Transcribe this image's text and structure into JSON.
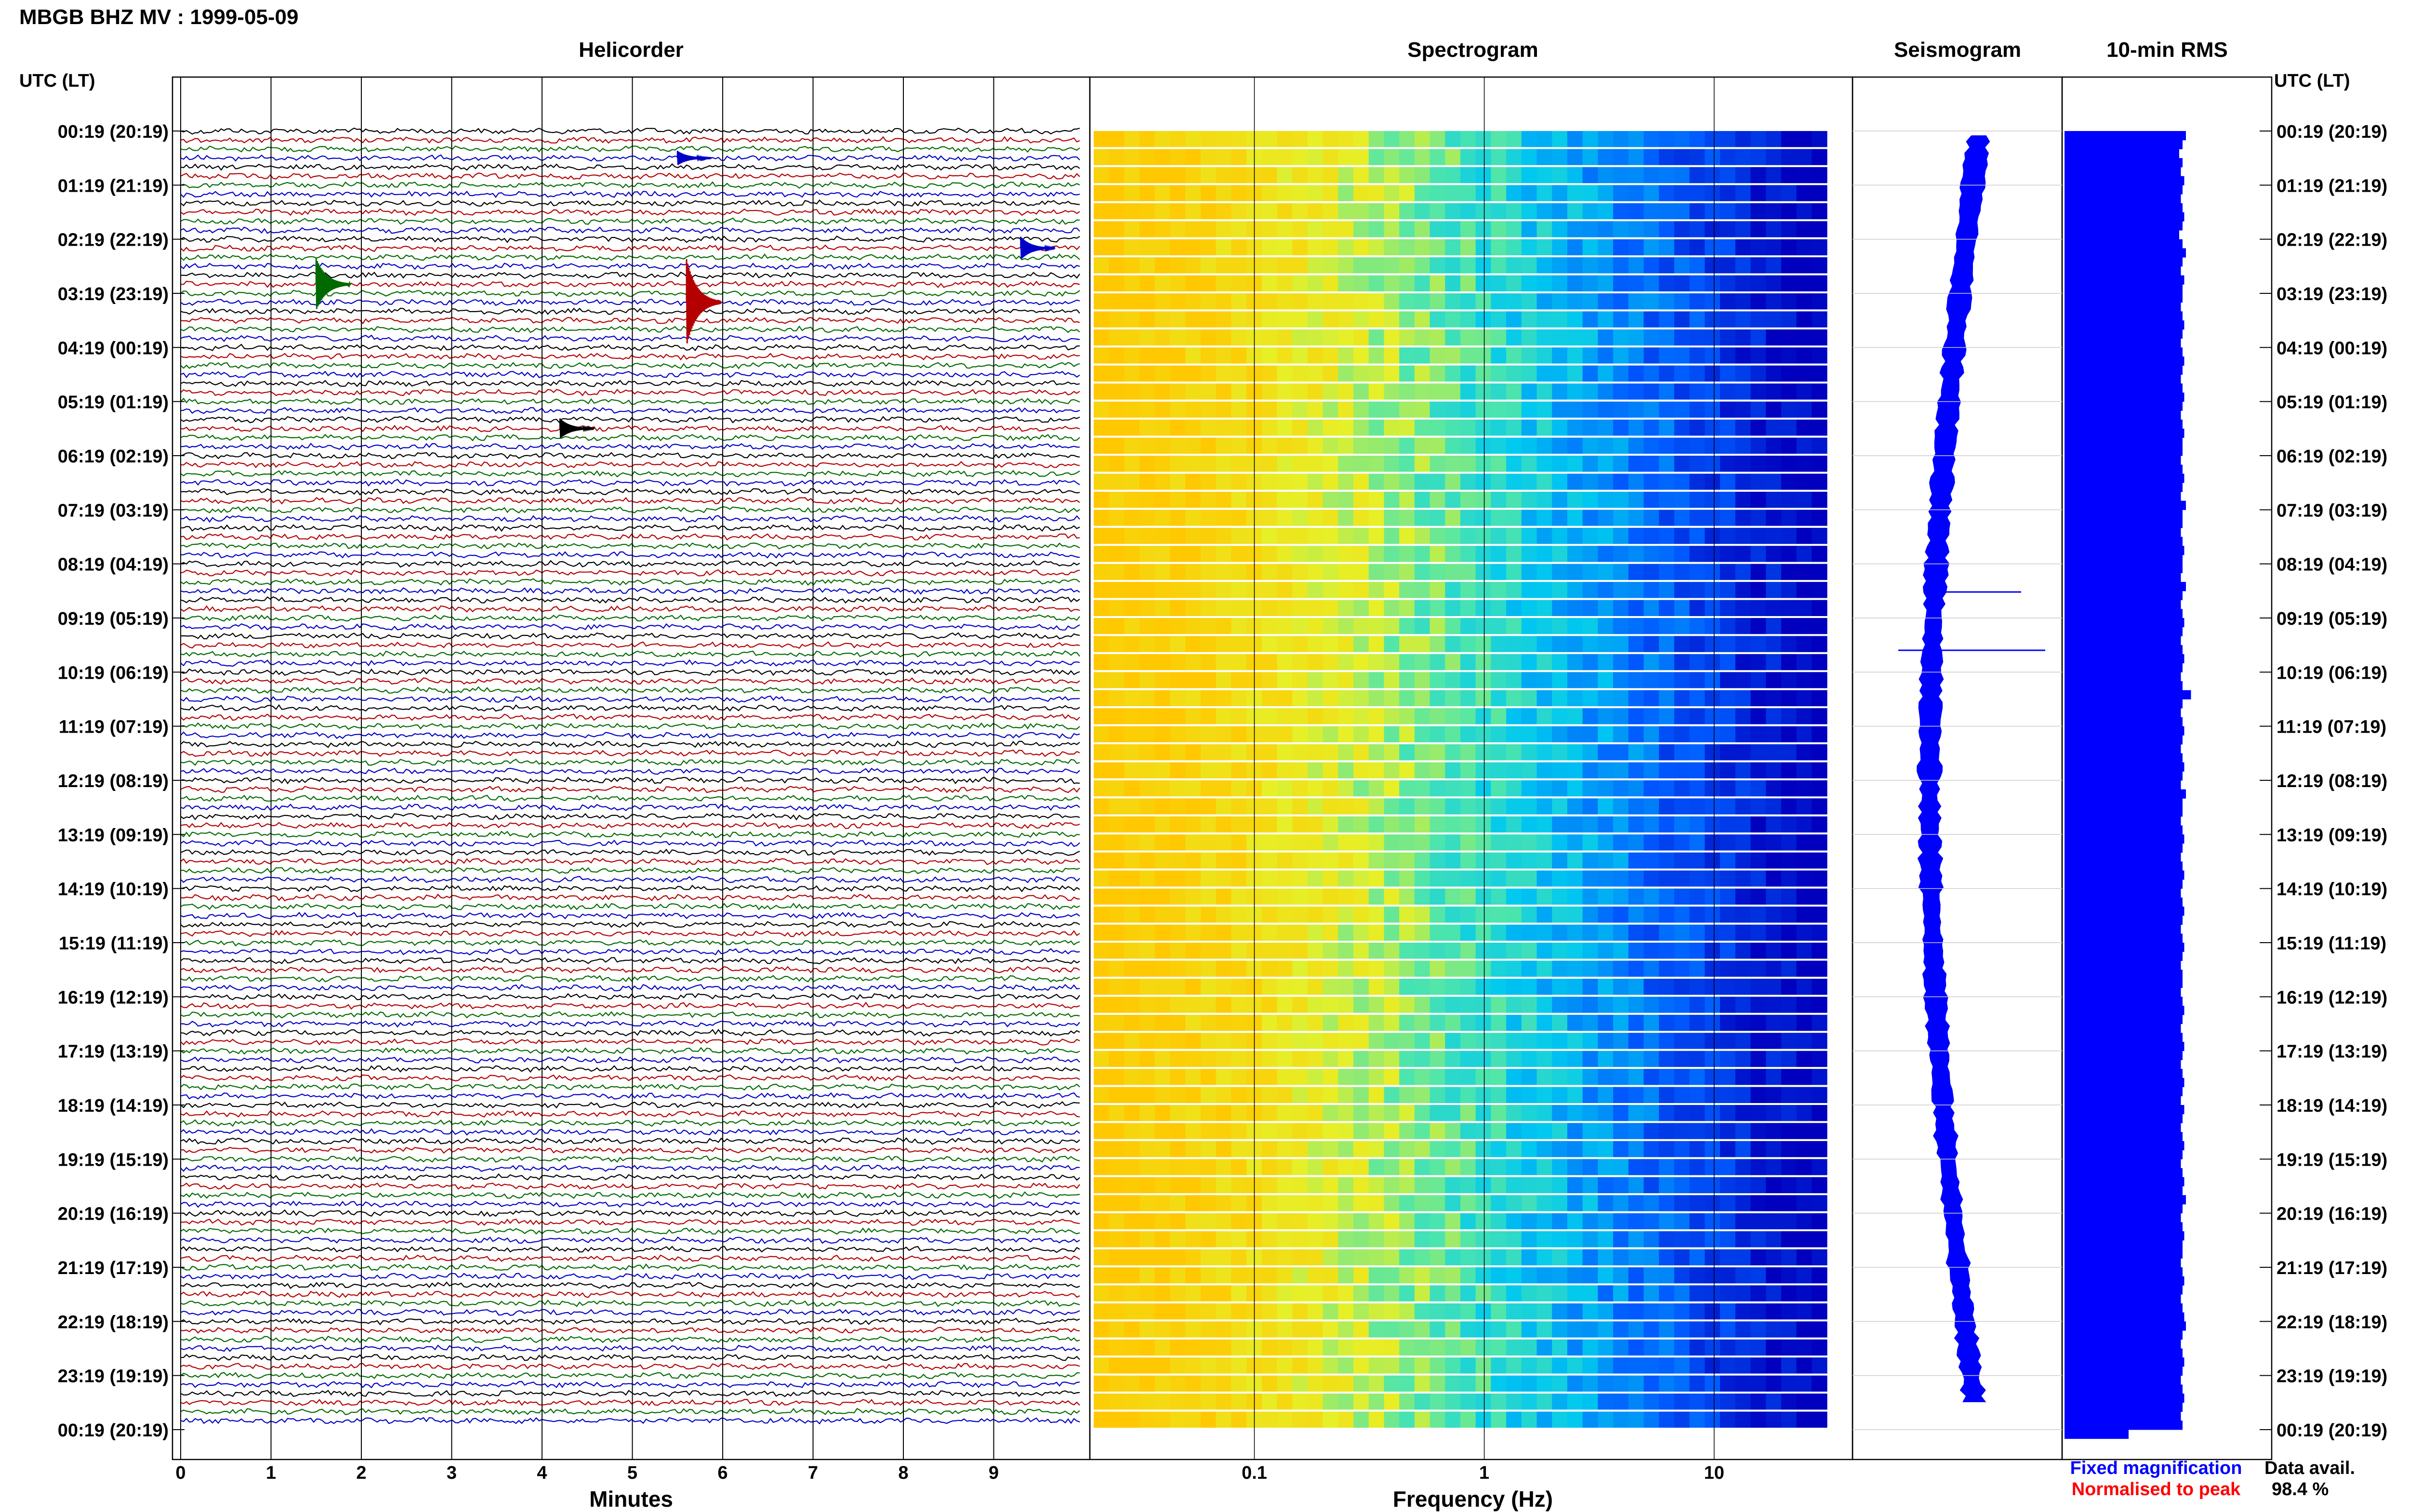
{
  "header": {
    "title": "MBGB BHZ MV : 1999-05-09",
    "time_axis_label_left": "UTC (LT)",
    "time_axis_label_right": "UTC (LT)"
  },
  "panels": {
    "helicorder": "Helicorder",
    "spectrogram": "Spectrogram",
    "seismogram": "Seismogram",
    "rms": "10-min RMS"
  },
  "footer": {
    "fixed_magnification": "Fixed magnification",
    "normalised_to_peak": "Normalised to peak",
    "data_avail_label": "Data avail.",
    "data_avail_value": "98.4 %"
  },
  "colors": {
    "trace_cycle": [
      "#000000",
      "#b40000",
      "#006a00",
      "#0000c8"
    ],
    "seismogram": "#0000ff",
    "rms_bar": "#0000ff",
    "fixed_magnification": "#0000ff",
    "normalised_to_peak": "#ff0000"
  },
  "time_labels": [
    "00:19 (20:19)",
    "01:19 (21:19)",
    "02:19 (22:19)",
    "03:19 (23:19)",
    "04:19 (00:19)",
    "05:19 (01:19)",
    "06:19 (02:19)",
    "07:19 (03:19)",
    "08:19 (04:19)",
    "09:19 (05:19)",
    "10:19 (06:19)",
    "11:19 (07:19)",
    "12:19 (08:19)",
    "13:19 (09:19)",
    "14:19 (10:19)",
    "15:19 (11:19)",
    "16:19 (12:19)",
    "17:19 (13:19)",
    "18:19 (14:19)",
    "19:19 (15:19)",
    "20:19 (16:19)",
    "21:19 (17:19)",
    "22:19 (18:19)",
    "23:19 (19:19)",
    "00:19 (20:19)"
  ],
  "chart_data": [
    {
      "type": "line",
      "panel": "Helicorder",
      "xlabel": "Minutes",
      "xticks": [
        "0",
        "1",
        "2",
        "3",
        "4",
        "5",
        "6",
        "7",
        "8",
        "9"
      ],
      "xlim": [
        0,
        10
      ],
      "traces_per_hour": 6,
      "hours": 24,
      "events": [
        {
          "row": 17,
          "minute": 1.5,
          "color": "#006a00",
          "amplitude": 0.9
        },
        {
          "row": 19,
          "minute": 5.6,
          "color": "#b40000",
          "amplitude": 1.5
        },
        {
          "row": 13,
          "minute": 9.3,
          "color": "#0000c8",
          "amplitude": 0.4
        },
        {
          "row": 33,
          "minute": 4.2,
          "color": "#000000",
          "amplitude": 0.35
        },
        {
          "row": 3,
          "minute": 5.5,
          "color": "#0000c8",
          "amplitude": 0.25
        }
      ]
    },
    {
      "type": "heatmap",
      "panel": "Spectrogram",
      "xlabel": "Frequency (Hz)",
      "xscale": "log",
      "xticks": [
        "0.1",
        "1",
        "10"
      ],
      "xlim": [
        0.02,
        40
      ]
    },
    {
      "type": "line",
      "panel": "Seismogram",
      "hours": 24
    },
    {
      "type": "bar",
      "panel": "10-min RMS",
      "orientation": "horizontal",
      "values": [
        0.72,
        0.7,
        0.68,
        0.7,
        0.69,
        0.71,
        0.7,
        0.69,
        0.7,
        0.71,
        0.7,
        0.68,
        0.7,
        0.72,
        0.7,
        0.69,
        0.71,
        0.7,
        0.7,
        0.69,
        0.7,
        0.71,
        0.7,
        0.69,
        0.7,
        0.71,
        0.7,
        0.69,
        0.7,
        0.71,
        0.7,
        0.69,
        0.7,
        0.71,
        0.7,
        0.7,
        0.69,
        0.7,
        0.71,
        0.7,
        0.69,
        0.72,
        0.7,
        0.7,
        0.69,
        0.7,
        0.71,
        0.7,
        0.7,
        0.69,
        0.72,
        0.7,
        0.69,
        0.7,
        0.71,
        0.7,
        0.69,
        0.7,
        0.71,
        0.7,
        0.69,
        0.7,
        0.75,
        0.7,
        0.69,
        0.7,
        0.71,
        0.7,
        0.69,
        0.7,
        0.71,
        0.7,
        0.69,
        0.72,
        0.7,
        0.7,
        0.69,
        0.7,
        0.71,
        0.7,
        0.69,
        0.7,
        0.71,
        0.7,
        0.69,
        0.7,
        0.71,
        0.7,
        0.69,
        0.7,
        0.71,
        0.7,
        0.69,
        0.7,
        0.7,
        0.69,
        0.7,
        0.71,
        0.7,
        0.69,
        0.7,
        0.71,
        0.7,
        0.69,
        0.7,
        0.71,
        0.7,
        0.69,
        0.71,
        0.7,
        0.69,
        0.7,
        0.71,
        0.7,
        0.69,
        0.7,
        0.71,
        0.7,
        0.72,
        0.7,
        0.69,
        0.7,
        0.71,
        0.7,
        0.7,
        0.69,
        0.7,
        0.71,
        0.7,
        0.69,
        0.7,
        0.71,
        0.72,
        0.7,
        0.69,
        0.7,
        0.71,
        0.7,
        0.69,
        0.7,
        0.71,
        0.7,
        0.69,
        0.7,
        0.38
      ]
    }
  ]
}
